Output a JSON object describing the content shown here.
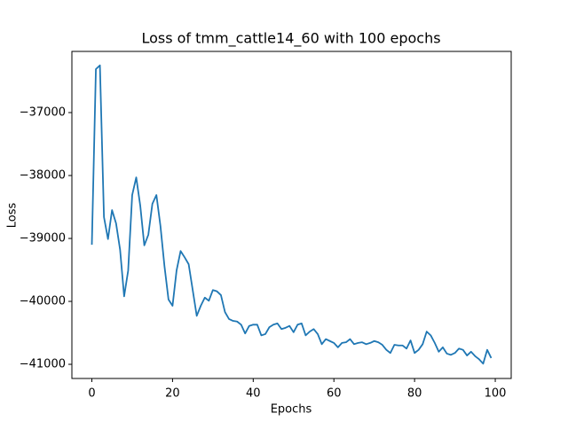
{
  "chart_data": {
    "type": "line",
    "title": "Loss of tmm_cattle14_60 with 100 epochs",
    "xlabel": "Epochs",
    "ylabel": "Loss",
    "color": "#1f77b4",
    "x": [
      0,
      1,
      2,
      3,
      4,
      5,
      6,
      7,
      8,
      9,
      10,
      11,
      12,
      13,
      14,
      15,
      16,
      17,
      18,
      19,
      20,
      21,
      22,
      23,
      24,
      25,
      26,
      27,
      28,
      29,
      30,
      31,
      32,
      33,
      34,
      35,
      36,
      37,
      38,
      39,
      40,
      41,
      42,
      43,
      44,
      45,
      46,
      47,
      48,
      49,
      50,
      51,
      52,
      53,
      54,
      55,
      56,
      57,
      58,
      59,
      60,
      61,
      62,
      63,
      64,
      65,
      66,
      67,
      68,
      69,
      70,
      71,
      72,
      73,
      74,
      75,
      76,
      77,
      78,
      79,
      80,
      81,
      82,
      83,
      84,
      85,
      86,
      87,
      88,
      89,
      90,
      91,
      92,
      93,
      94,
      95,
      96,
      97,
      98,
      99
    ],
    "values": [
      -39100,
      -36310,
      -36250,
      -38660,
      -39010,
      -38550,
      -38760,
      -39180,
      -39920,
      -39510,
      -38310,
      -38030,
      -38480,
      -39110,
      -38940,
      -38450,
      -38310,
      -38800,
      -39440,
      -39970,
      -40070,
      -39510,
      -39200,
      -39300,
      -39410,
      -39820,
      -40230,
      -40070,
      -39940,
      -39990,
      -39820,
      -39840,
      -39900,
      -40170,
      -40280,
      -40310,
      -40320,
      -40370,
      -40510,
      -40390,
      -40370,
      -40370,
      -40540,
      -40520,
      -40410,
      -40370,
      -40350,
      -40440,
      -40420,
      -40390,
      -40490,
      -40370,
      -40350,
      -40540,
      -40480,
      -40440,
      -40520,
      -40680,
      -40600,
      -40630,
      -40660,
      -40730,
      -40660,
      -40650,
      -40600,
      -40680,
      -40660,
      -40650,
      -40680,
      -40660,
      -40630,
      -40650,
      -40690,
      -40770,
      -40820,
      -40690,
      -40700,
      -40700,
      -40750,
      -40620,
      -40820,
      -40770,
      -40680,
      -40480,
      -40540,
      -40660,
      -40800,
      -40730,
      -40830,
      -40850,
      -40820,
      -40750,
      -40770,
      -40860,
      -40800,
      -40870,
      -40920,
      -40990,
      -40770,
      -40900
    ],
    "xlim": [
      -4.95,
      103.95
    ],
    "xticks": [
      0,
      20,
      40,
      60,
      80,
      100
    ],
    "ylim": [
      -41225,
      -36028
    ],
    "yticks": [
      {
        "value": -41000,
        "label": "−41000"
      },
      {
        "value": -40000,
        "label": "−40000"
      },
      {
        "value": -39000,
        "label": "−39000"
      },
      {
        "value": -38000,
        "label": "−38000"
      },
      {
        "value": -37000,
        "label": "−37000"
      }
    ]
  }
}
